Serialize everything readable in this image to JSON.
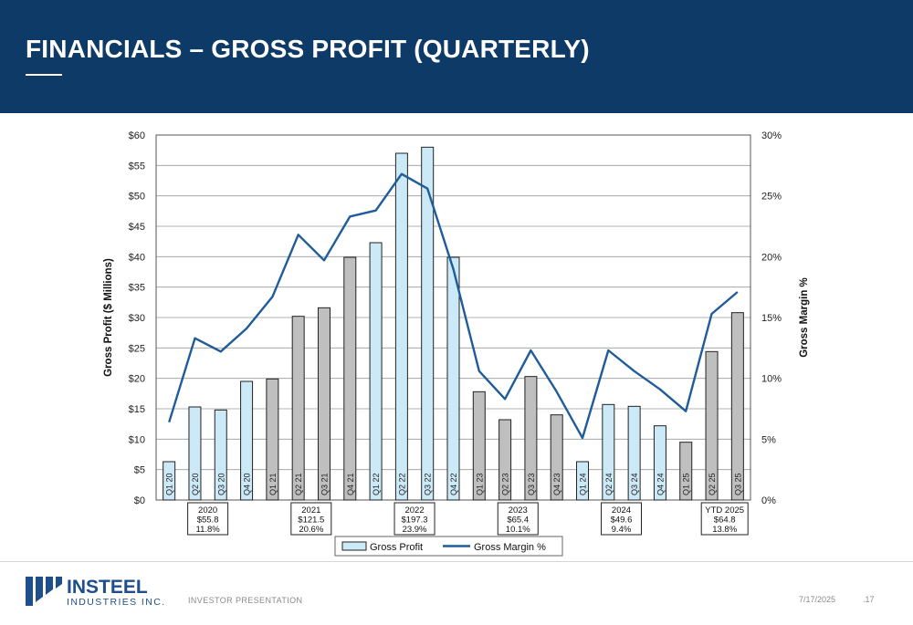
{
  "header": {
    "title": "FINANCIALS – GROSS PROFIT (QUARTERLY)"
  },
  "footer": {
    "company": "INSTEEL",
    "company_sub": "INDUSTRIES INC.",
    "label": "INVESTOR PRESENTATION",
    "date": "7/17/2025",
    "page": ".17"
  },
  "colors": {
    "header_bg": "#0d3a66",
    "bar_light": "#cce9f7",
    "bar_gray": "#bfbfbf",
    "line": "#1f5c99",
    "logo": "#1f4f8a"
  },
  "chart_data": {
    "type": "bar",
    "ylabel": "Gross Profit ($ Millions)",
    "y2label": "Gross Margin %",
    "ylim": [
      0,
      60
    ],
    "y2lim": [
      0,
      30
    ],
    "yticks": [
      "$0",
      "$5",
      "$10",
      "$15",
      "$20",
      "$25",
      "$30",
      "$35",
      "$40",
      "$45",
      "$50",
      "$55",
      "$60"
    ],
    "y2ticks": [
      "0%",
      "5%",
      "10%",
      "15%",
      "20%",
      "25%",
      "30%"
    ],
    "categories": [
      "Q1 20",
      "Q2 20",
      "Q3 20",
      "Q4 20",
      "Q1 21",
      "Q2 21",
      "Q3 21",
      "Q4 21",
      "Q1 22",
      "Q2 22",
      "Q3 22",
      "Q4 22",
      "Q1 23",
      "Q2 23",
      "Q3 23",
      "Q4 23",
      "Q1 24",
      "Q2 24",
      "Q3 24",
      "Q4 24",
      "Q1 25",
      "Q2 25",
      "Q3 25"
    ],
    "bar_style": [
      "light",
      "light",
      "light",
      "light",
      "gray",
      "gray",
      "gray",
      "gray",
      "light",
      "light",
      "light",
      "light",
      "gray",
      "gray",
      "gray",
      "gray",
      "light",
      "light",
      "light",
      "light",
      "gray",
      "gray",
      "gray"
    ],
    "series": [
      {
        "name": "Gross Profit",
        "values": [
          6.3,
          15.3,
          14.8,
          19.5,
          19.9,
          30.2,
          31.6,
          39.9,
          42.3,
          57.0,
          58.0,
          39.9,
          17.8,
          13.2,
          20.3,
          14.0,
          6.3,
          15.7,
          15.4,
          12.2,
          9.5,
          24.4,
          30.8
        ]
      },
      {
        "name": "Gross Margin %",
        "axis": "right",
        "values": [
          6.4,
          13.3,
          12.2,
          14.1,
          16.7,
          21.8,
          19.7,
          23.3,
          23.8,
          26.8,
          25.6,
          19.0,
          10.6,
          8.3,
          12.3,
          8.9,
          5.1,
          12.3,
          10.6,
          9.1,
          7.3,
          15.3,
          17.1
        ]
      }
    ],
    "annual_summaries": [
      {
        "lines": [
          "2020",
          "$55.8",
          "11.8%"
        ]
      },
      {
        "lines": [
          "2021",
          "$121.5",
          "20.6%"
        ]
      },
      {
        "lines": [
          "2022",
          "$197.3",
          "23.9%"
        ]
      },
      {
        "lines": [
          "2023",
          "$65.4",
          "10.1%"
        ]
      },
      {
        "lines": [
          "2024",
          "$49.6",
          "9.4%"
        ]
      },
      {
        "lines": [
          "YTD 2025",
          "$64.8",
          "13.8%"
        ]
      }
    ],
    "grid": true,
    "legend_position": "bottom"
  }
}
